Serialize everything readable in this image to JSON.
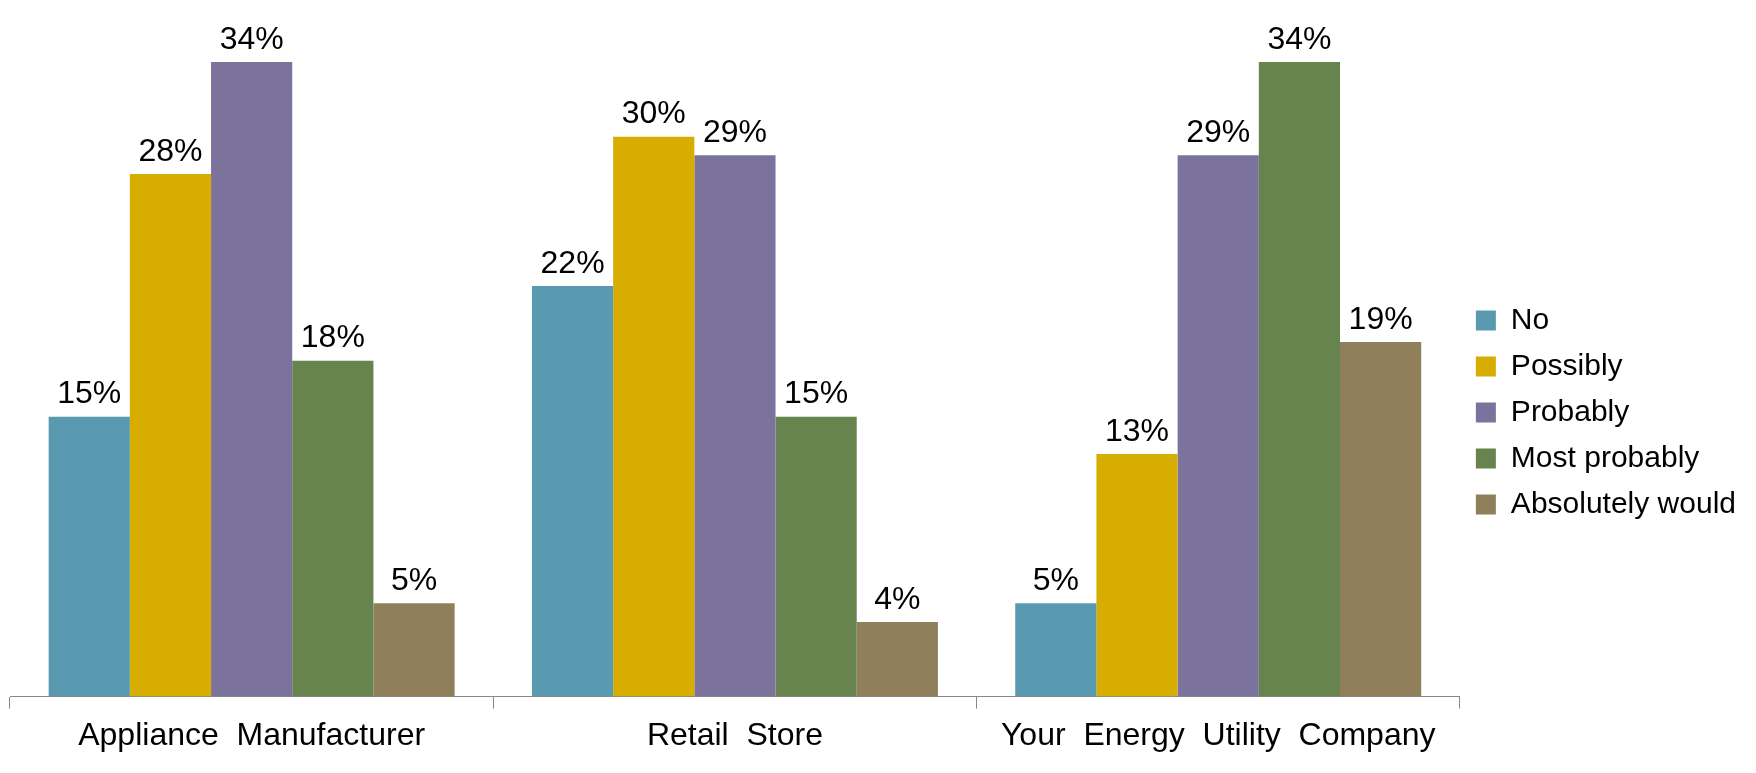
{
  "chart_data": {
    "type": "bar",
    "categories": [
      "Appliance  Manufacturer",
      "Retail  Store",
      "Your  Energy  Utility  Company"
    ],
    "series": [
      {
        "name": "No",
        "color": "#5a9ab0",
        "values": [
          15,
          22,
          5
        ],
        "value_labels": [
          "15%",
          "22%",
          "5%"
        ]
      },
      {
        "name": "Possibly",
        "color": "#d6ad00",
        "values": [
          28,
          30,
          13
        ],
        "value_labels": [
          "28%",
          "30%",
          "13%"
        ]
      },
      {
        "name": "Probably",
        "color": "#7b739b",
        "values": [
          34,
          29,
          29
        ],
        "value_labels": [
          "34%",
          "29%",
          "29%"
        ]
      },
      {
        "name": "Most probably",
        "color": "#67844f",
        "values": [
          18,
          15,
          34
        ],
        "value_labels": [
          "18%",
          "15%",
          "34%"
        ]
      },
      {
        "name": "Absolutely would",
        "color": "#8f7f5b",
        "values": [
          5,
          4,
          19
        ],
        "value_labels": [
          "5%",
          "4%",
          "19%"
        ]
      }
    ],
    "legend": "right",
    "grid": false
  }
}
